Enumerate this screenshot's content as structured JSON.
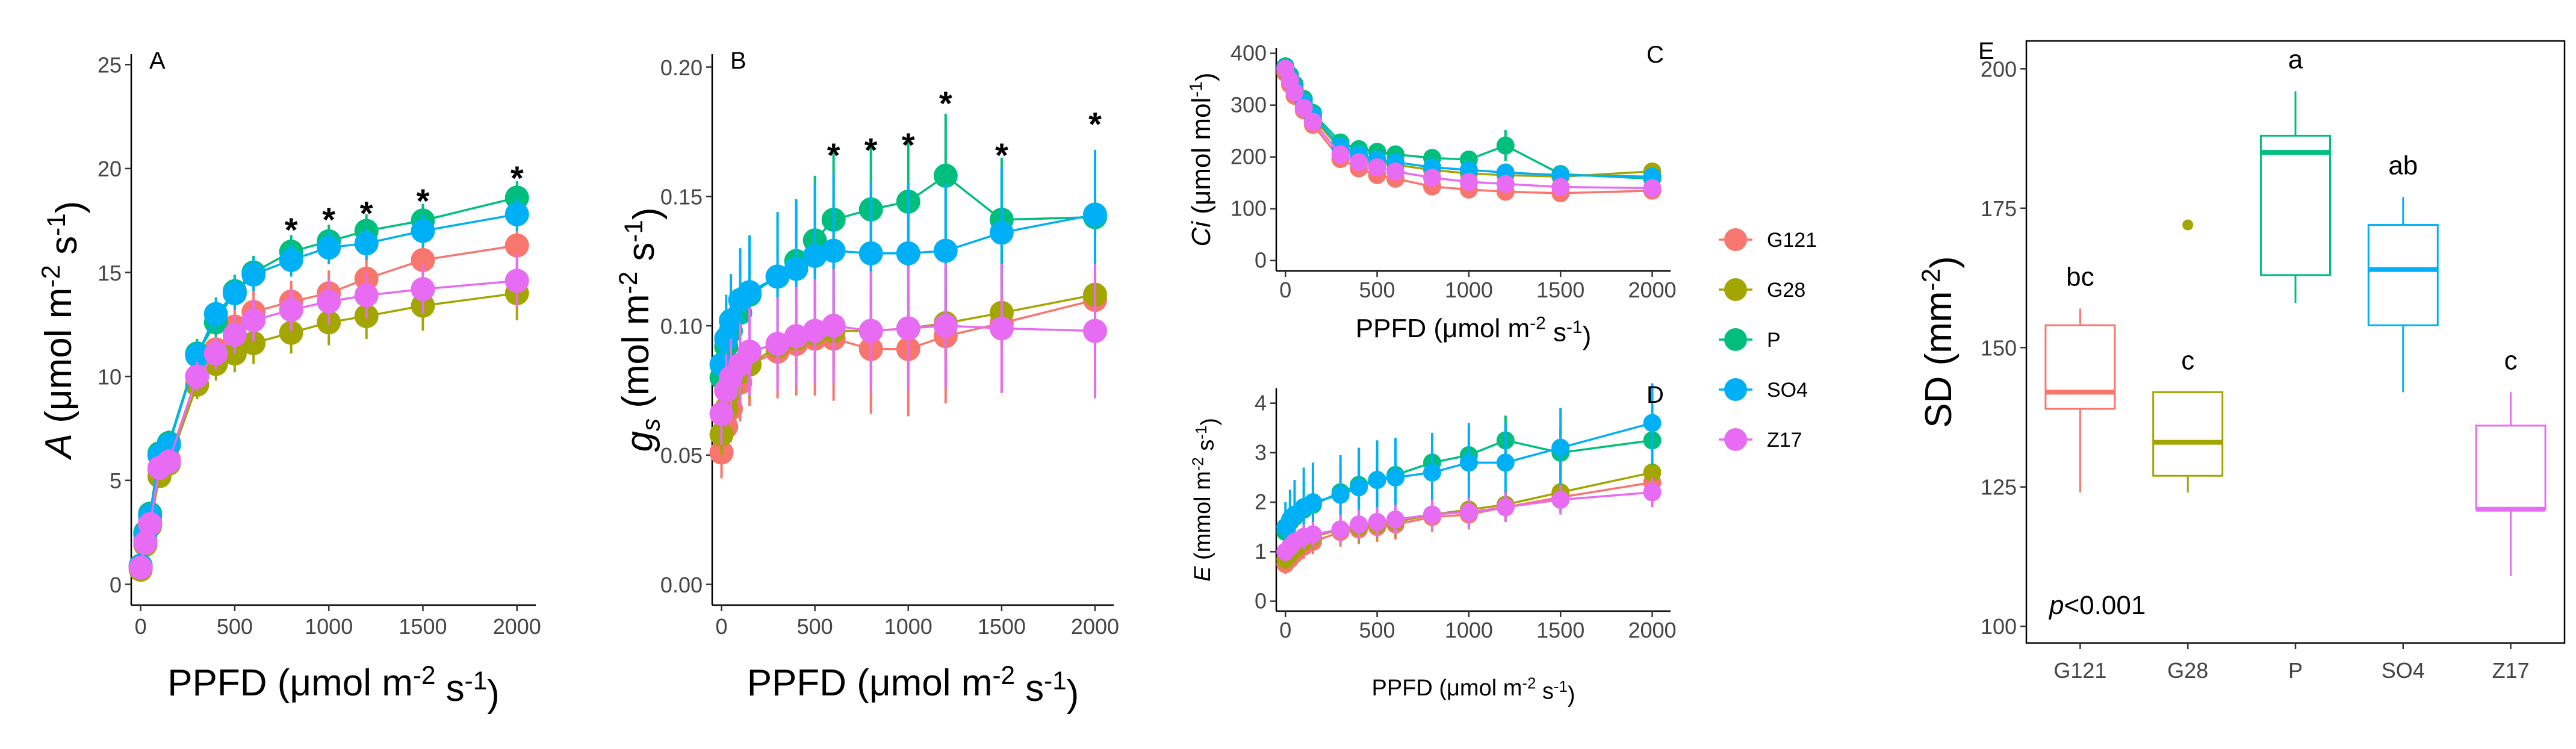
{
  "colors": {
    "G121": "#F8766D",
    "G28": "#A3A500",
    "P": "#00BF7D",
    "SO4": "#00B0F6",
    "Z17": "#E76BF3"
  },
  "legend": {
    "entries": [
      "G121",
      "G28",
      "P",
      "SO4",
      "Z17"
    ]
  },
  "chart_data": [
    {
      "panel": "A",
      "type": "line",
      "title": "A",
      "xlabel": "PPFD (μmol m⁻² s⁻¹)",
      "ylabel": "A (μmol m⁻² s⁻¹)",
      "xlim": [
        -50,
        2100
      ],
      "ylim": [
        -1,
        25.5
      ],
      "xticks": [
        0,
        500,
        1000,
        1500,
        2000
      ],
      "yticks": [
        0,
        5,
        10,
        15,
        20,
        25
      ],
      "x": [
        0,
        25,
        50,
        100,
        150,
        300,
        400,
        500,
        600,
        800,
        1000,
        1200,
        1500,
        2000
      ],
      "series": [
        {
          "name": "G121",
          "values": [
            0.8,
            2.1,
            3.0,
            5.5,
            6.0,
            10.0,
            11.3,
            12.4,
            13.1,
            13.6,
            14.0,
            14.7,
            15.6,
            16.3
          ],
          "err": [
            0.3,
            0.4,
            0.4,
            0.5,
            0.6,
            0.7,
            0.8,
            0.9,
            1.0,
            1.0,
            1.1,
            1.1,
            1.2,
            1.3
          ]
        },
        {
          "name": "G28",
          "values": [
            0.7,
            1.9,
            2.8,
            5.2,
            5.8,
            9.6,
            10.6,
            11.1,
            11.6,
            12.1,
            12.6,
            12.9,
            13.4,
            14.0
          ],
          "err": [
            0.3,
            0.4,
            0.4,
            0.5,
            0.6,
            0.7,
            0.8,
            0.9,
            1.0,
            1.0,
            1.1,
            1.1,
            1.2,
            1.3
          ]
        },
        {
          "name": "P",
          "values": [
            0.9,
            2.5,
            3.4,
            6.3,
            6.8,
            11.1,
            12.6,
            14.1,
            15.0,
            16.0,
            16.5,
            17.0,
            17.5,
            18.6
          ],
          "err": [
            0.3,
            0.4,
            0.4,
            0.5,
            0.6,
            0.7,
            0.8,
            0.8,
            0.8,
            0.8,
            0.8,
            0.8,
            0.8,
            0.8
          ]
        },
        {
          "name": "SO4",
          "values": [
            0.9,
            2.4,
            3.3,
            6.2,
            6.7,
            11.0,
            13.0,
            14.0,
            14.9,
            15.6,
            16.2,
            16.4,
            17.0,
            17.8
          ],
          "err": [
            0.3,
            0.4,
            0.4,
            0.5,
            0.6,
            0.7,
            0.8,
            0.8,
            0.8,
            0.8,
            0.8,
            0.8,
            0.8,
            0.8
          ]
        },
        {
          "name": "Z17",
          "values": [
            0.8,
            2.0,
            2.9,
            5.6,
            5.9,
            10.0,
            11.1,
            12.0,
            12.7,
            13.2,
            13.6,
            13.9,
            14.2,
            14.6
          ],
          "err": [
            0.3,
            0.4,
            0.4,
            0.5,
            0.6,
            0.7,
            0.8,
            0.9,
            1.0,
            1.0,
            1.1,
            1.1,
            1.2,
            1.3
          ]
        }
      ],
      "stars": [
        {
          "x": 800,
          "y": 17.3
        },
        {
          "x": 1000,
          "y": 17.8
        },
        {
          "x": 1200,
          "y": 18.1
        },
        {
          "x": 1500,
          "y": 18.7
        },
        {
          "x": 2000,
          "y": 19.8
        }
      ]
    },
    {
      "panel": "B",
      "type": "line",
      "title": "B",
      "xlabel": "PPFD (μmol m⁻² s⁻¹)",
      "ylabel": "gs (mol m⁻² s⁻¹)",
      "xlim": [
        -50,
        2100
      ],
      "ylim": [
        -0.008,
        0.205
      ],
      "xticks": [
        0,
        500,
        1000,
        1500,
        2000
      ],
      "yticks": [
        0.0,
        0.05,
        0.1,
        0.15,
        0.2
      ],
      "ytickLabels": [
        "0.00",
        "0.05",
        "0.10",
        "0.15",
        "0.20"
      ],
      "x": [
        0,
        25,
        50,
        100,
        150,
        300,
        400,
        500,
        600,
        800,
        1000,
        1200,
        1500,
        2000
      ],
      "series": [
        {
          "name": "G121",
          "values": [
            0.051,
            0.061,
            0.068,
            0.078,
            0.085,
            0.09,
            0.093,
            0.095,
            0.095,
            0.091,
            0.091,
            0.096,
            0.101,
            0.11
          ],
          "err": [
            0.01,
            0.012,
            0.013,
            0.015,
            0.016,
            0.018,
            0.02,
            0.022,
            0.024,
            0.025,
            0.026,
            0.026,
            0.027,
            0.028
          ]
        },
        {
          "name": "G28",
          "values": [
            0.058,
            0.068,
            0.075,
            0.082,
            0.085,
            0.092,
            0.095,
            0.097,
            0.098,
            0.098,
            0.099,
            0.101,
            0.105,
            0.112
          ],
          "err": [
            0.008,
            0.01,
            0.011,
            0.012,
            0.013,
            0.014,
            0.014,
            0.014,
            0.014,
            0.014,
            0.014,
            0.014,
            0.014,
            0.014
          ]
        },
        {
          "name": "P",
          "values": [
            0.08,
            0.092,
            0.098,
            0.105,
            0.112,
            0.119,
            0.125,
            0.133,
            0.141,
            0.145,
            0.148,
            0.158,
            0.141,
            0.142
          ],
          "err": [
            0.015,
            0.017,
            0.018,
            0.02,
            0.022,
            0.023,
            0.024,
            0.025,
            0.026,
            0.024,
            0.024,
            0.024,
            0.024,
            0.024
          ]
        },
        {
          "name": "SO4",
          "values": [
            0.085,
            0.095,
            0.102,
            0.11,
            0.113,
            0.119,
            0.122,
            0.127,
            0.129,
            0.128,
            0.128,
            0.129,
            0.136,
            0.143
          ],
          "err": [
            0.015,
            0.017,
            0.018,
            0.02,
            0.022,
            0.025,
            0.026,
            0.028,
            0.03,
            0.028,
            0.027,
            0.026,
            0.025,
            0.025
          ]
        },
        {
          "name": "Z17",
          "values": [
            0.066,
            0.075,
            0.08,
            0.085,
            0.09,
            0.093,
            0.096,
            0.098,
            0.1,
            0.098,
            0.099,
            0.1,
            0.099,
            0.098
          ],
          "err": [
            0.012,
            0.014,
            0.015,
            0.016,
            0.017,
            0.018,
            0.019,
            0.02,
            0.022,
            0.023,
            0.024,
            0.024,
            0.025,
            0.026
          ]
        }
      ],
      "stars": [
        {
          "x": 600,
          "y": 0.168
        },
        {
          "x": 800,
          "y": 0.17
        },
        {
          "x": 1000,
          "y": 0.172
        },
        {
          "x": 1200,
          "y": 0.188
        },
        {
          "x": 1500,
          "y": 0.168
        },
        {
          "x": 2000,
          "y": 0.18
        }
      ]
    },
    {
      "panel": "C",
      "type": "line",
      "title": "C",
      "xlabel": "PPFD (μmol m⁻² s⁻¹)",
      "ylabel": "Ci (μmol mol⁻¹)",
      "xlim": [
        -50,
        2100
      ],
      "ylim": [
        -20,
        410
      ],
      "xticks": [
        0,
        500,
        1000,
        1500,
        2000
      ],
      "yticks": [
        0,
        100,
        200,
        300,
        400
      ],
      "x": [
        0,
        25,
        50,
        100,
        150,
        300,
        400,
        500,
        600,
        800,
        1000,
        1200,
        1500,
        2000
      ],
      "series": [
        {
          "name": "G121",
          "values": [
            362,
            340,
            318,
            290,
            262,
            196,
            178,
            165,
            158,
            143,
            137,
            133,
            130,
            135
          ],
          "err": [
            15,
            15,
            15,
            15,
            15,
            15,
            15,
            15,
            15,
            15,
            15,
            15,
            15,
            15
          ]
        },
        {
          "name": "G28",
          "values": [
            368,
            350,
            330,
            300,
            275,
            215,
            200,
            190,
            185,
            175,
            168,
            165,
            162,
            172
          ],
          "err": [
            15,
            15,
            15,
            15,
            15,
            15,
            15,
            15,
            15,
            15,
            15,
            15,
            15,
            15
          ]
        },
        {
          "name": "P",
          "values": [
            375,
            358,
            340,
            312,
            285,
            228,
            215,
            210,
            205,
            198,
            195,
            222,
            167,
            158
          ],
          "err": [
            15,
            15,
            15,
            15,
            15,
            15,
            15,
            15,
            15,
            15,
            15,
            30,
            15,
            15
          ]
        },
        {
          "name": "SO4",
          "values": [
            372,
            352,
            332,
            305,
            280,
            220,
            205,
            195,
            190,
            180,
            175,
            170,
            165,
            162
          ],
          "err": [
            15,
            15,
            15,
            15,
            15,
            15,
            15,
            15,
            15,
            15,
            15,
            15,
            15,
            15
          ]
        },
        {
          "name": "Z17",
          "values": [
            370,
            348,
            325,
            295,
            268,
            205,
            190,
            180,
            172,
            160,
            152,
            148,
            142,
            140
          ],
          "err": [
            15,
            15,
            15,
            15,
            15,
            15,
            15,
            15,
            15,
            15,
            15,
            15,
            15,
            15
          ]
        }
      ]
    },
    {
      "panel": "D",
      "type": "line",
      "title": "D",
      "xlabel": "PPFD (μmol m⁻² s⁻¹)",
      "ylabel": "E (mmol m⁻² s⁻¹)",
      "xlim": [
        -50,
        2100
      ],
      "ylim": [
        -0.2,
        4.3
      ],
      "xticks": [
        0,
        500,
        1000,
        1500,
        2000
      ],
      "yticks": [
        0,
        1,
        2,
        3,
        4
      ],
      "x": [
        0,
        25,
        50,
        100,
        150,
        300,
        400,
        500,
        600,
        800,
        1000,
        1200,
        1500,
        2000
      ],
      "series": [
        {
          "name": "G121",
          "values": [
            0.75,
            0.85,
            0.95,
            1.1,
            1.2,
            1.4,
            1.45,
            1.5,
            1.55,
            1.7,
            1.75,
            1.9,
            2.1,
            2.4
          ],
          "err": [
            0.2,
            0.2,
            0.2,
            0.25,
            0.25,
            0.3,
            0.3,
            0.3,
            0.3,
            0.3,
            0.3,
            0.3,
            0.3,
            0.3
          ]
        },
        {
          "name": "G28",
          "values": [
            0.85,
            0.95,
            1.05,
            1.2,
            1.3,
            1.45,
            1.5,
            1.55,
            1.6,
            1.75,
            1.85,
            1.95,
            2.2,
            2.6
          ],
          "err": [
            0.2,
            0.2,
            0.2,
            0.25,
            0.25,
            0.3,
            0.3,
            0.3,
            0.3,
            0.3,
            0.3,
            0.3,
            0.3,
            0.3
          ]
        },
        {
          "name": "P",
          "values": [
            1.4,
            1.6,
            1.7,
            1.85,
            1.95,
            2.2,
            2.35,
            2.45,
            2.55,
            2.8,
            2.95,
            3.25,
            3.0,
            3.25
          ],
          "err": [
            0.4,
            0.45,
            0.5,
            0.55,
            0.55,
            0.55,
            0.55,
            0.55,
            0.55,
            0.5,
            0.5,
            0.5,
            0.5,
            0.5
          ]
        },
        {
          "name": "SO4",
          "values": [
            1.5,
            1.65,
            1.75,
            1.9,
            2.0,
            2.15,
            2.3,
            2.45,
            2.5,
            2.6,
            2.8,
            2.8,
            3.1,
            3.6
          ],
          "err": [
            0.5,
            0.6,
            0.7,
            0.8,
            0.8,
            0.8,
            0.8,
            0.8,
            0.8,
            0.8,
            0.8,
            0.8,
            0.8,
            0.8
          ]
        },
        {
          "name": "Z17",
          "values": [
            1.0,
            1.1,
            1.2,
            1.3,
            1.35,
            1.45,
            1.55,
            1.6,
            1.65,
            1.75,
            1.8,
            1.9,
            2.05,
            2.2
          ],
          "err": [
            0.2,
            0.2,
            0.2,
            0.25,
            0.25,
            0.3,
            0.3,
            0.3,
            0.3,
            0.3,
            0.3,
            0.3,
            0.3,
            0.3
          ]
        }
      ]
    },
    {
      "panel": "E",
      "type": "box",
      "title": "E",
      "xlabel": "",
      "ylabel": "SD (mm⁻²)",
      "ylim": [
        97,
        205
      ],
      "yticks": [
        100,
        125,
        150,
        175,
        200
      ],
      "categories": [
        "G121",
        "G28",
        "P",
        "SO4",
        "Z17"
      ],
      "boxes": [
        {
          "name": "G121",
          "min": 124,
          "q1": 139,
          "median": 142,
          "q3": 154,
          "max": 157,
          "outliers": [],
          "letter": "bc"
        },
        {
          "name": "G28",
          "min": 124,
          "q1": 127,
          "median": 133,
          "q3": 142,
          "max": 142,
          "outliers": [
            172
          ],
          "letter": "c"
        },
        {
          "name": "P",
          "min": 158,
          "q1": 163,
          "median": 185,
          "q3": 188,
          "max": 196,
          "outliers": [],
          "letter": "a"
        },
        {
          "name": "SO4",
          "min": 142,
          "q1": 154,
          "median": 164,
          "q3": 172,
          "max": 177,
          "outliers": [],
          "letter": "ab"
        },
        {
          "name": "Z17",
          "min": 109,
          "q1": 121,
          "median": 121,
          "q3": 136,
          "max": 142,
          "outliers": [],
          "letter": "c"
        }
      ],
      "annotation": "p<0.001"
    }
  ]
}
